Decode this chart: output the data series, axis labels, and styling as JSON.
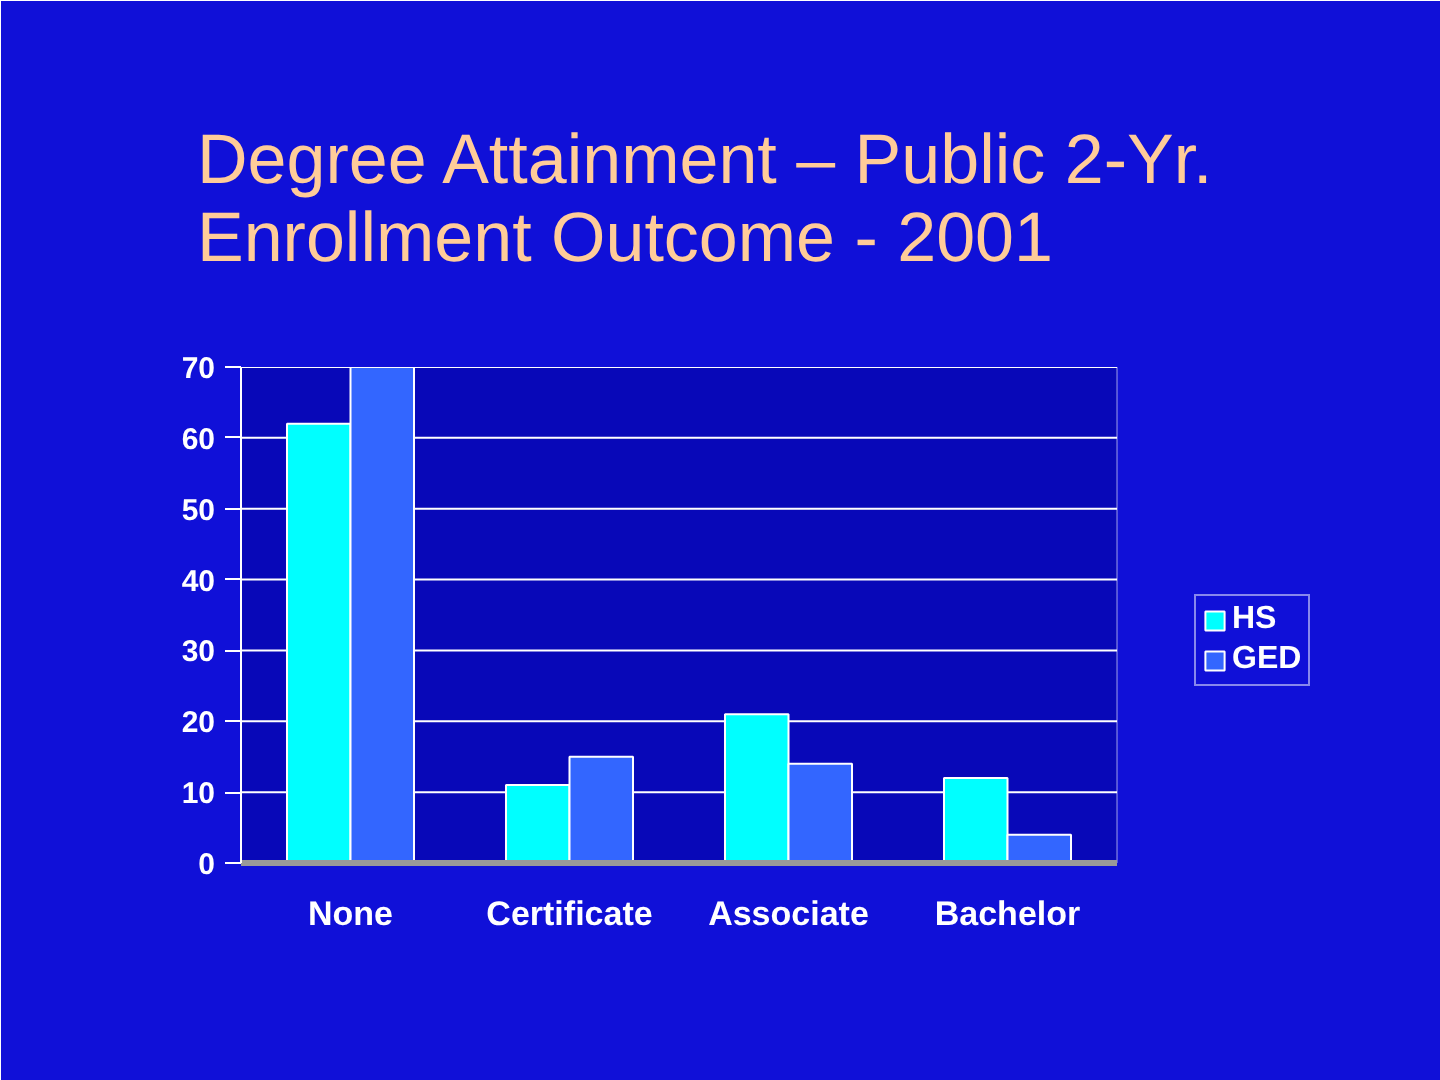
{
  "chart_data": {
    "type": "bar",
    "title": "Degree Attainment – Public 2-Yr.\nEnrollment Outcome - 2001",
    "categories": [
      "None",
      "Certificate",
      "Associate",
      "Bachelor"
    ],
    "series": [
      {
        "name": "HS",
        "color": "#00ffff",
        "values": [
          62,
          11,
          21,
          12
        ]
      },
      {
        "name": "GED",
        "color": "#3366ff",
        "values": [
          70,
          15,
          14,
          4
        ]
      }
    ],
    "ylim": [
      0,
      70
    ],
    "yticks": [
      0,
      10,
      20,
      30,
      40,
      50,
      60,
      70
    ],
    "grid": "y",
    "legend": "right"
  }
}
